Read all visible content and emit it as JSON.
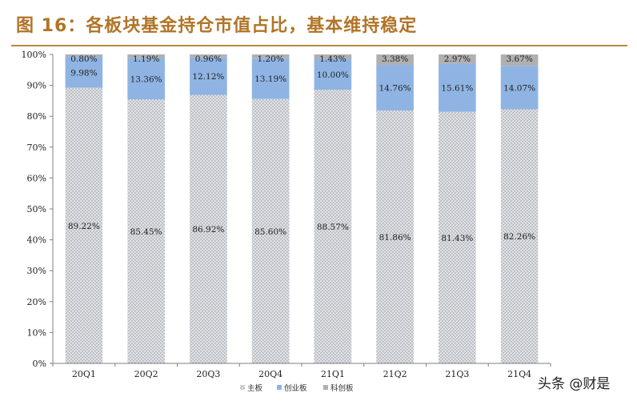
{
  "header": {
    "title": "图 16：各板块基金持仓市值占比，基本维持稳定"
  },
  "watermark": {
    "text": "头条 @财是"
  },
  "colors": {
    "main": "#d8dadd",
    "main_dots": "#8c939c",
    "chinext": "#8fb4e3",
    "star": "#b0b0b0",
    "axis": "#7f7f7f",
    "title": "#b17428"
  },
  "chart_data": {
    "type": "bar",
    "stacked": true,
    "categories": [
      "20Q1",
      "20Q2",
      "20Q3",
      "20Q4",
      "21Q1",
      "21Q2",
      "21Q3",
      "21Q4"
    ],
    "series": [
      {
        "name": "主板",
        "values": [
          89.22,
          85.45,
          86.92,
          85.6,
          88.57,
          81.86,
          81.43,
          82.26
        ],
        "labels": [
          "89.22%",
          "85.45%",
          "86.92%",
          "85.60%",
          "88.57%",
          "81.86%",
          "81.43%",
          "82.26%"
        ]
      },
      {
        "name": "创业板",
        "values": [
          9.98,
          13.36,
          12.12,
          13.19,
          10.0,
          14.76,
          15.61,
          14.07
        ],
        "labels": [
          "9.98%",
          "13.36%",
          "12.12%",
          "13.19%",
          "10.00%",
          "14.76%",
          "15.61%",
          "14.07%"
        ]
      },
      {
        "name": "科创板",
        "values": [
          0.8,
          1.19,
          0.96,
          1.2,
          1.43,
          3.38,
          2.97,
          3.67
        ],
        "labels": [
          "0.80%",
          "1.19%",
          "0.96%",
          "1.20%",
          "1.43%",
          "3.38%",
          "2.97%",
          "3.67%"
        ]
      }
    ],
    "ylim": [
      0,
      100
    ],
    "yticks": [
      "0%",
      "10%",
      "20%",
      "30%",
      "40%",
      "50%",
      "60%",
      "70%",
      "80%",
      "90%",
      "100%"
    ],
    "legend_position": "bottom",
    "grid": false
  }
}
